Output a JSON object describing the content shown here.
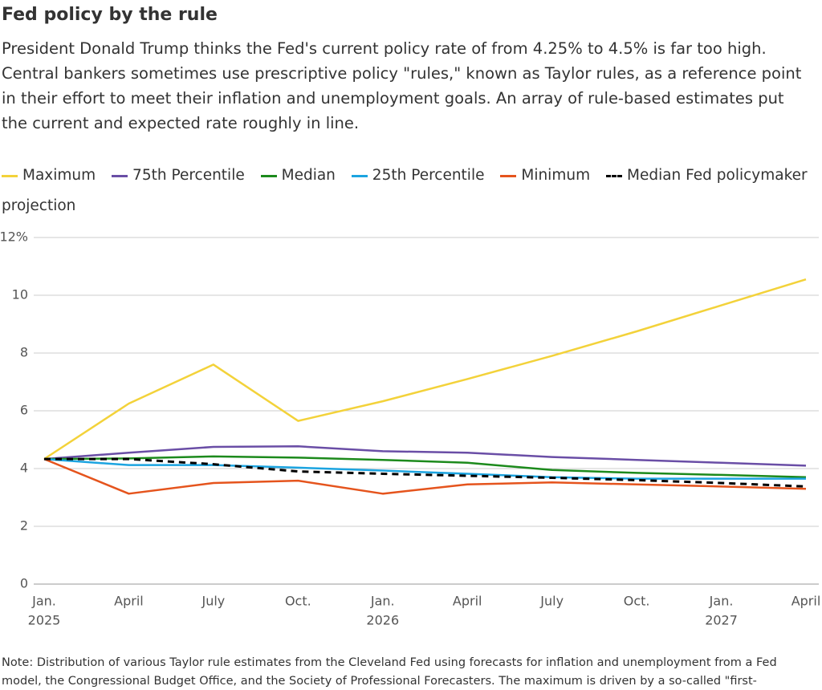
{
  "chart_data": {
    "type": "line",
    "title": "Fed policy by the rule",
    "subtitle": "President Donald Trump thinks the Fed's current policy rate of from 4.25% to 4.5% is far too high. Central bankers sometimes use prescriptive policy \"rules,\" known as Taylor rules, as a reference point in their effort to meet their inflation and unemployment goals. An array of rule-based estimates put the current and expected rate roughly in line.",
    "categories": [
      "Jan.",
      "April",
      "July",
      "Oct.",
      "Jan.",
      "April",
      "July",
      "Oct.",
      "Jan.",
      "April"
    ],
    "category_years": [
      "2025",
      null,
      null,
      null,
      "2026",
      null,
      null,
      null,
      "2027",
      null
    ],
    "series": [
      {
        "name": "Maximum",
        "color": "#f3d23a",
        "dashed": false,
        "values": [
          4.33,
          6.25,
          7.6,
          5.65,
          6.33,
          7.1,
          7.9,
          8.75,
          9.65,
          10.55
        ]
      },
      {
        "name": "75th Percentile",
        "color": "#6a4ea6",
        "dashed": false,
        "values": [
          4.33,
          4.55,
          4.75,
          4.77,
          4.6,
          4.55,
          4.4,
          4.3,
          4.2,
          4.1
        ]
      },
      {
        "name": "Median",
        "color": "#1c8a1c",
        "dashed": false,
        "values": [
          4.33,
          4.35,
          4.42,
          4.38,
          4.3,
          4.2,
          3.95,
          3.85,
          3.78,
          3.7
        ]
      },
      {
        "name": "25th Percentile",
        "color": "#1ca4e0",
        "dashed": false,
        "values": [
          4.33,
          4.12,
          4.12,
          4.03,
          3.93,
          3.82,
          3.7,
          3.65,
          3.65,
          3.65
        ]
      },
      {
        "name": "Minimum",
        "color": "#e5541d",
        "dashed": false,
        "values": [
          4.33,
          3.13,
          3.5,
          3.58,
          3.13,
          3.45,
          3.52,
          3.45,
          3.38,
          3.3
        ]
      },
      {
        "name": "Median Fed policymaker projection",
        "color": "#000000",
        "dashed": true,
        "values": [
          4.33,
          4.33,
          4.15,
          3.9,
          3.82,
          3.75,
          3.68,
          3.6,
          3.5,
          3.38
        ]
      }
    ],
    "ylim": [
      0,
      12
    ],
    "yticks": [
      0,
      2,
      4,
      6,
      8,
      10,
      {
        "value": 12,
        "label": "12%"
      }
    ],
    "grid": true,
    "note": "Note: Distribution of various Taylor rule estimates from the Cleveland Fed using forecasts for inflation and unemployment from a Fed model, the Congressional Budget Office, and the Society of Professional Forecasters. The maximum is driven by a so-called \"first-"
  }
}
